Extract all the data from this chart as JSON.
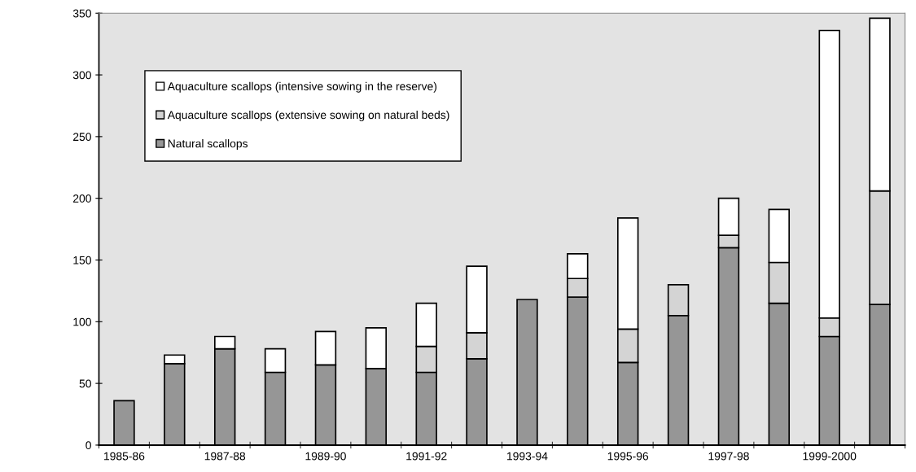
{
  "chart_data": {
    "type": "bar",
    "stacked": true,
    "categories": [
      "1985-86",
      null,
      "1987-88",
      null,
      "1989-90",
      null,
      "1991-92",
      null,
      "1993-94",
      null,
      "1995-96",
      null,
      "1997-98",
      null,
      "1999-2000",
      null
    ],
    "series": [
      {
        "name": "Natural scallops",
        "color": "#969696",
        "values": [
          36,
          66,
          78,
          59,
          65,
          62,
          59,
          70,
          118,
          120,
          67,
          105,
          160,
          115,
          88,
          114
        ]
      },
      {
        "name": "Aquaculture scallops (extensive sowing on natural beds)",
        "color": "#d4d4d4",
        "values": [
          null,
          null,
          null,
          null,
          null,
          null,
          21,
          21,
          null,
          15,
          27,
          25,
          10,
          33,
          15,
          92
        ]
      },
      {
        "name": "Aquaculture scallops (intensive sowing in the reserve)",
        "color": "#ffffff",
        "values": [
          null,
          7,
          10,
          19,
          27,
          33,
          35,
          54,
          null,
          20,
          90,
          null,
          30,
          43,
          233,
          140
        ]
      }
    ],
    "ylim": [
      0,
      350
    ],
    "yticks": [
      0,
      50,
      100,
      150,
      200,
      250,
      300,
      350
    ],
    "grid": false,
    "legend": "top left"
  }
}
